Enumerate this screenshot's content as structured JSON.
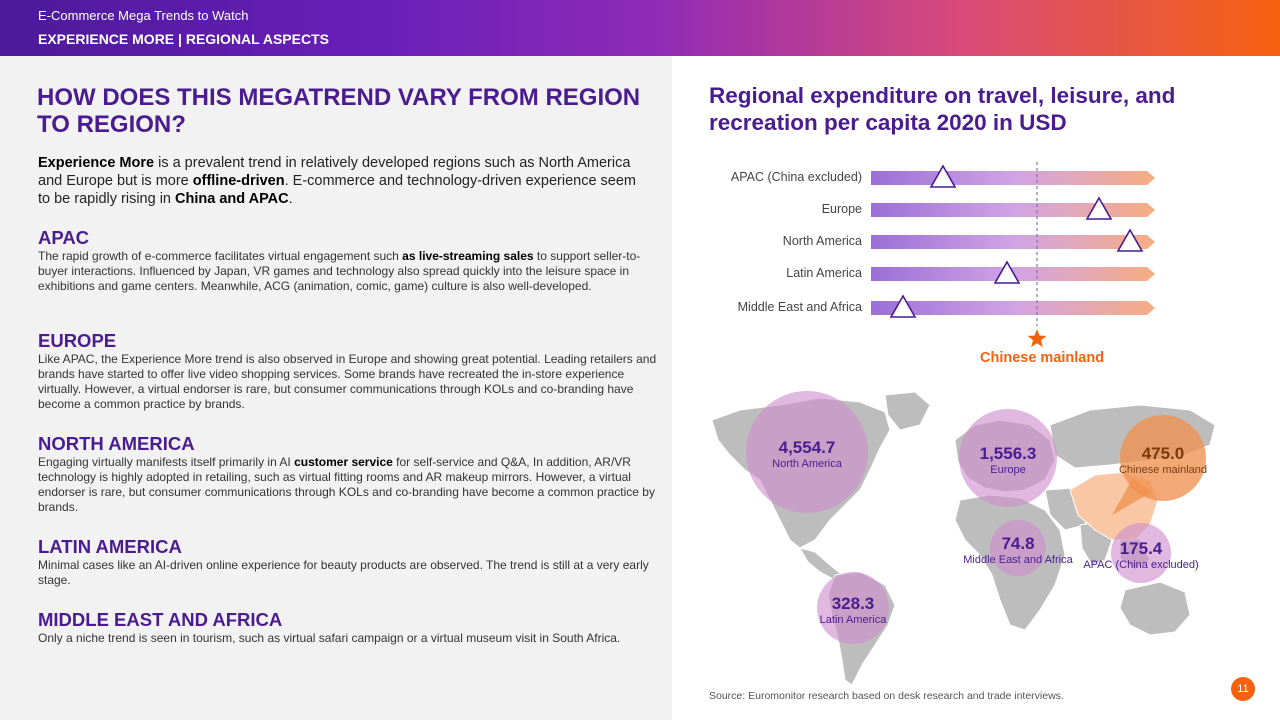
{
  "header": {
    "supertitle": "E-Commerce Mega Trends to Watch",
    "subtitle": "EXPERIENCE MORE | REGIONAL ASPECTS"
  },
  "left": {
    "title": "HOW DOES THIS MEGATREND VARY FROM REGION TO REGION?",
    "intro": {
      "b1": "Experience More",
      "t1": " is a prevalent trend in relatively developed regions such as North America and Europe but is more ",
      "b2": "offline-driven",
      "t2": ". E-commerce and technology-driven experience seem to be rapidly rising in ",
      "b3": "China and APAC",
      "t3": "."
    },
    "regions": [
      {
        "heading": "APAC",
        "t1": "The rapid growth of e-commerce facilitates virtual engagement such ",
        "b1": "as live-streaming sales",
        "t2": " to support seller-to-buyer interactions. Influenced by Japan, VR games and technology also spread quickly into the leisure space in exhibitions and game centers. Meanwhile, ACG (animation, comic, game) culture is also well-developed."
      },
      {
        "heading": "EUROPE",
        "t1": "Like APAC, the Experience More trend is also observed in Europe and showing great potential. Leading retailers and brands have started to offer live video shopping services. Some brands have recreated the in-store experience virtually. However, a virtual endorser is rare, but consumer communications through KOLs and co-branding have become a common practice by brands."
      },
      {
        "heading": "NORTH AMERICA",
        "t1": "Engaging virtually manifests itself primarily in AI ",
        "b1": "customer service",
        "t2": " for self-service and Q&A, In addition, AR/VR technology is highly adopted in retailing, such as virtual fitting rooms and AR makeup mirrors. However, a virtual endorser is rare, but consumer communications through KOLs and co-branding have become a common practice by brands."
      },
      {
        "heading": "LATIN AMERICA",
        "t1": "Minimal cases like an AI-driven online experience for beauty products are observed. The trend is still at a very early stage."
      },
      {
        "heading": "MIDDLE EAST AND AFRICA",
        "t1": "Only a niche trend is seen in tourism, such as virtual safari campaign or a virtual museum visit in South Africa."
      }
    ]
  },
  "right": {
    "title": "Regional expenditure on travel, leisure, and recreation per capita 2020 in USD",
    "source": "Source: Euromonitor research based on desk research and trade interviews.",
    "page_number": "11"
  },
  "chart_data": [
    {
      "type": "scatter",
      "title": "Regional expenditure on travel, leisure, and recreation per capita 2020 in USD",
      "categories": [
        "APAC (China excluded)",
        "Europe",
        "North America",
        "Latin America",
        "Middle East and Africa"
      ],
      "values": [
        175.4,
        1556.3,
        4554.7,
        328.3,
        74.8
      ],
      "reference": {
        "name": "Chinese mainland",
        "value": 475.0
      },
      "colors": {
        "bar_start": "#9b6fd6",
        "bar_mid": "#c9a0e0",
        "bar_end": "#f5a77a",
        "marker": "#4a1c8f",
        "reference": "#f5620f"
      }
    },
    {
      "type": "bubble-map",
      "bubbles": [
        {
          "name": "North America",
          "value": "4,554.7"
        },
        {
          "name": "Europe",
          "value": "1,556.3"
        },
        {
          "name": "Chinese mainland",
          "value": "475.0"
        },
        {
          "name": "Middle East and Africa",
          "value": "74.8"
        },
        {
          "name": "APAC (China excluded)",
          "value": "175.4"
        },
        {
          "name": "Latin America",
          "value": "328.3"
        }
      ]
    }
  ]
}
